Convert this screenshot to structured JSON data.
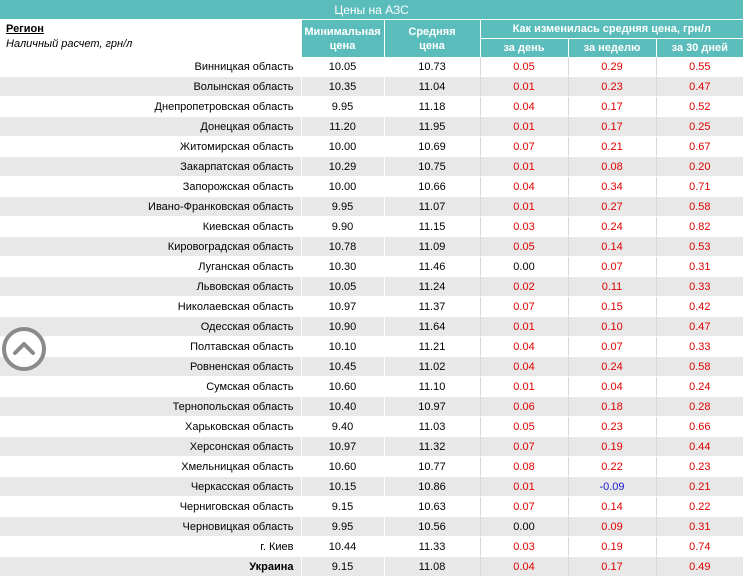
{
  "title": "Цены на АЗС",
  "header": {
    "region": "Регион",
    "subtitle": "Наличный расчет, грн/л",
    "min_price": [
      "Минимальная",
      "цена"
    ],
    "avg_price": [
      "Средняя",
      "цена"
    ],
    "change_group": "Как изменилась средняя цена, грн/л",
    "per_day": "за день",
    "per_week": "за неделю",
    "per_30": "за 30 дней"
  },
  "rows": [
    {
      "name": "Винницкая область",
      "min": "10.05",
      "avg": "10.73",
      "day": "0.05",
      "week": "0.29",
      "month": "0.55"
    },
    {
      "name": "Волынская область",
      "min": "10.35",
      "avg": "11.04",
      "day": "0.01",
      "week": "0.23",
      "month": "0.47"
    },
    {
      "name": "Днепропетровская область",
      "min": "9.95",
      "avg": "11.18",
      "day": "0.04",
      "week": "0.17",
      "month": "0.52"
    },
    {
      "name": "Донецкая область",
      "min": "11.20",
      "avg": "11.95",
      "day": "0.01",
      "week": "0.17",
      "month": "0.25"
    },
    {
      "name": "Житомирская область",
      "min": "10.00",
      "avg": "10.69",
      "day": "0.07",
      "week": "0.21",
      "month": "0.67"
    },
    {
      "name": "Закарпатская область",
      "min": "10.29",
      "avg": "10.75",
      "day": "0.01",
      "week": "0.08",
      "month": "0.20"
    },
    {
      "name": "Запорожская область",
      "min": "10.00",
      "avg": "10.66",
      "day": "0.04",
      "week": "0.34",
      "month": "0.71"
    },
    {
      "name": "Ивано-Франковская область",
      "min": "9.95",
      "avg": "11.07",
      "day": "0.01",
      "week": "0.27",
      "month": "0.58"
    },
    {
      "name": "Киевская область",
      "min": "9.90",
      "avg": "11.15",
      "day": "0.03",
      "week": "0.24",
      "month": "0.82"
    },
    {
      "name": "Кировоградская область",
      "min": "10.78",
      "avg": "11.09",
      "day": "0.05",
      "week": "0.14",
      "month": "0.53"
    },
    {
      "name": "Луганская область",
      "min": "10.30",
      "avg": "11.46",
      "day": "0.00",
      "week": "0.07",
      "month": "0.31"
    },
    {
      "name": "Львовская область",
      "min": "10.05",
      "avg": "11.24",
      "day": "0.02",
      "week": "0.11",
      "month": "0.33"
    },
    {
      "name": "Николаевская область",
      "min": "10.97",
      "avg": "11.37",
      "day": "0.07",
      "week": "0.15",
      "month": "0.42"
    },
    {
      "name": "Одесская область",
      "min": "10.90",
      "avg": "11.64",
      "day": "0.01",
      "week": "0.10",
      "month": "0.47"
    },
    {
      "name": "Полтавская область",
      "min": "10.10",
      "avg": "11.21",
      "day": "0.04",
      "week": "0.07",
      "month": "0.33"
    },
    {
      "name": "Ровненская область",
      "min": "10.45",
      "avg": "11.02",
      "day": "0.04",
      "week": "0.24",
      "month": "0.58"
    },
    {
      "name": "Сумская область",
      "min": "10.60",
      "avg": "11.10",
      "day": "0.01",
      "week": "0.04",
      "month": "0.24"
    },
    {
      "name": "Тернопольская область",
      "min": "10.40",
      "avg": "10.97",
      "day": "0.06",
      "week": "0.18",
      "month": "0.28"
    },
    {
      "name": "Харьковская область",
      "min": "9.40",
      "avg": "11.03",
      "day": "0.05",
      "week": "0.23",
      "month": "0.66"
    },
    {
      "name": "Херсонская область",
      "min": "10.97",
      "avg": "11.32",
      "day": "0.07",
      "week": "0.19",
      "month": "0.44"
    },
    {
      "name": "Хмельницкая область",
      "min": "10.60",
      "avg": "10.77",
      "day": "0.08",
      "week": "0.22",
      "month": "0.23"
    },
    {
      "name": "Черкасская область",
      "min": "10.15",
      "avg": "10.86",
      "day": "0.01",
      "week": "-0.09",
      "month": "0.21"
    },
    {
      "name": "Черниговская область",
      "min": "9.15",
      "avg": "10.63",
      "day": "0.07",
      "week": "0.14",
      "month": "0.22"
    },
    {
      "name": "Черновицкая область",
      "min": "9.95",
      "avg": "10.56",
      "day": "0.00",
      "week": "0.09",
      "month": "0.31"
    },
    {
      "name": "г. Киев",
      "min": "10.44",
      "avg": "11.33",
      "day": "0.03",
      "week": "0.19",
      "month": "0.74"
    },
    {
      "name": "Украина",
      "min": "9.15",
      "avg": "11.08",
      "day": "0.04",
      "week": "0.17",
      "month": "0.49",
      "total": true
    }
  ],
  "colors": {
    "header_bg": "#5bbcbc",
    "increase": "#e00000",
    "decrease": "#1a1ad0",
    "stripe": "#e8e8e8"
  },
  "scroll_button_icon": "chevron-up-icon"
}
